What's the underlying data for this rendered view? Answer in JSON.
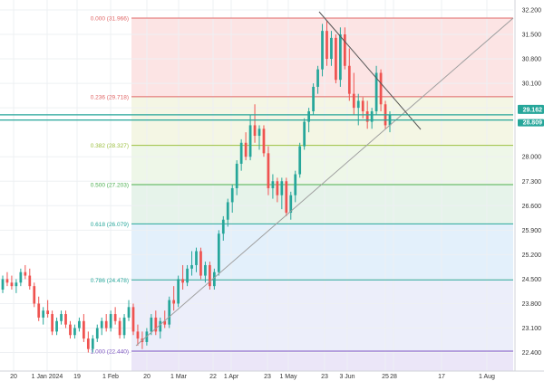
{
  "chart_data": {
    "type": "candlestick",
    "symbol_price": {
      "last": "29.162",
      "secondary": "28.809"
    },
    "y_axis": {
      "ticks": [
        "32.200",
        "31.500",
        "30.800",
        "30.100",
        "29.400",
        "28.000",
        "27.300",
        "26.600",
        "25.900",
        "25.200",
        "24.500",
        "23.800",
        "23.100",
        "22.400"
      ],
      "range": [
        22.1,
        32.3
      ]
    },
    "x_axis": {
      "ticks": [
        "20",
        "1 Jan 2024",
        "19",
        "1 Feb",
        "20",
        "1 Mar",
        "22",
        "1 Apr",
        "23",
        "1 May",
        "23",
        "3 Jun",
        "25",
        "28",
        "17",
        "1 Aug"
      ]
    },
    "fibonacci": {
      "levels": [
        {
          "label": "0.000 (31.966)",
          "price": 31.966,
          "color": "#e06666",
          "fill": "#fce4e4"
        },
        {
          "label": "0.236 (29.718)",
          "price": 29.718,
          "color": "#e06666",
          "fill": "#f4f6e4"
        },
        {
          "label": "0.382 (28.327)",
          "price": 28.327,
          "color": "#9bbf3f",
          "fill": "#eef7e8"
        },
        {
          "label": "0.500 (27.203)",
          "price": 27.203,
          "color": "#4caf50",
          "fill": "#e6f3ea"
        },
        {
          "label": "0.618 (26.079)",
          "price": 26.079,
          "color": "#26a69a",
          "fill": "#e3f0fb"
        },
        {
          "label": "0.786 (24.478)",
          "price": 24.478,
          "color": "#26a69a",
          "fill": "#eceefa"
        },
        {
          "label": "1.000 (22.440)",
          "price": 22.44,
          "color": "#7e57c2",
          "fill": "#ebe6f8"
        }
      ]
    },
    "horizontal_lines": [
      29.2,
      29.05
    ],
    "candles": [
      [
        24.2,
        24.6,
        24.1,
        24.5
      ],
      [
        24.5,
        24.7,
        24.3,
        24.4
      ],
      [
        24.4,
        24.6,
        24.2,
        24.3
      ],
      [
        24.3,
        24.5,
        24.1,
        24.4
      ],
      [
        24.4,
        24.8,
        24.3,
        24.7
      ],
      [
        24.7,
        24.9,
        24.5,
        24.6
      ],
      [
        24.6,
        24.8,
        24.2,
        24.3
      ],
      [
        24.3,
        24.4,
        23.7,
        23.8
      ],
      [
        23.8,
        24.0,
        23.3,
        23.4
      ],
      [
        23.4,
        23.7,
        23.2,
        23.6
      ],
      [
        23.6,
        23.9,
        23.4,
        23.5
      ],
      [
        23.5,
        23.6,
        22.9,
        23.0
      ],
      [
        23.0,
        23.4,
        22.9,
        23.3
      ],
      [
        23.3,
        23.6,
        23.2,
        23.5
      ],
      [
        23.5,
        23.6,
        23.1,
        23.2
      ],
      [
        23.2,
        23.3,
        22.8,
        22.9
      ],
      [
        22.9,
        23.2,
        22.8,
        23.1
      ],
      [
        23.1,
        23.4,
        23.0,
        23.3
      ],
      [
        23.3,
        23.5,
        22.7,
        22.8
      ],
      [
        22.8,
        23.0,
        22.4,
        22.5
      ],
      [
        22.5,
        22.9,
        22.4,
        22.8
      ],
      [
        22.8,
        23.2,
        22.7,
        23.1
      ],
      [
        23.1,
        23.4,
        22.9,
        23.3
      ],
      [
        23.3,
        23.5,
        23.0,
        23.1
      ],
      [
        23.1,
        23.6,
        23.0,
        23.5
      ],
      [
        23.5,
        23.7,
        23.2,
        23.3
      ],
      [
        23.3,
        23.4,
        22.8,
        22.9
      ],
      [
        22.9,
        23.5,
        22.8,
        23.4
      ],
      [
        23.4,
        23.9,
        23.3,
        23.7
      ],
      [
        23.7,
        23.8,
        22.9,
        23.0
      ],
      [
        23.0,
        23.2,
        22.6,
        22.8
      ],
      [
        22.8,
        23.0,
        22.5,
        22.7
      ],
      [
        22.7,
        23.1,
        22.6,
        23.0
      ],
      [
        23.0,
        23.5,
        22.9,
        23.4
      ],
      [
        23.4,
        23.6,
        22.9,
        23.0
      ],
      [
        23.0,
        23.4,
        22.8,
        23.3
      ],
      [
        23.3,
        23.6,
        23.1,
        23.2
      ],
      [
        23.2,
        24.0,
        23.1,
        23.9
      ],
      [
        23.9,
        24.3,
        23.6,
        23.8
      ],
      [
        23.8,
        24.6,
        23.7,
        24.5
      ],
      [
        24.5,
        24.9,
        24.2,
        24.4
      ],
      [
        24.4,
        24.9,
        24.3,
        24.8
      ],
      [
        24.8,
        25.3,
        24.6,
        24.9
      ],
      [
        24.9,
        25.4,
        24.7,
        25.3
      ],
      [
        25.3,
        25.4,
        24.5,
        24.6
      ],
      [
        24.6,
        25.0,
        24.4,
        24.9
      ],
      [
        24.9,
        25.0,
        24.2,
        24.3
      ],
      [
        24.3,
        24.8,
        24.2,
        24.7
      ],
      [
        24.7,
        25.9,
        24.6,
        25.8
      ],
      [
        25.8,
        26.3,
        25.6,
        26.2
      ],
      [
        26.2,
        26.8,
        26.0,
        26.7
      ],
      [
        26.7,
        27.2,
        26.4,
        27.1
      ],
      [
        27.1,
        27.9,
        26.9,
        27.8
      ],
      [
        27.8,
        28.5,
        27.6,
        28.4
      ],
      [
        28.4,
        28.7,
        27.9,
        28.0
      ],
      [
        28.0,
        29.2,
        27.9,
        28.9
      ],
      [
        28.9,
        29.5,
        28.4,
        28.6
      ],
      [
        28.6,
        28.9,
        28.2,
        28.8
      ],
      [
        28.8,
        28.9,
        28.0,
        28.1
      ],
      [
        28.1,
        28.3,
        26.9,
        27.1
      ],
      [
        27.1,
        27.5,
        26.8,
        27.3
      ],
      [
        27.3,
        27.4,
        26.7,
        26.9
      ],
      [
        26.9,
        27.4,
        26.5,
        27.3
      ],
      [
        27.3,
        27.4,
        26.3,
        26.4
      ],
      [
        26.4,
        27.0,
        26.2,
        26.9
      ],
      [
        26.9,
        27.6,
        26.7,
        27.5
      ],
      [
        27.5,
        28.4,
        27.4,
        28.3
      ],
      [
        28.3,
        29.1,
        28.2,
        29.0
      ],
      [
        29.0,
        29.4,
        28.7,
        29.3
      ],
      [
        29.3,
        30.1,
        29.2,
        30.0
      ],
      [
        30.0,
        30.6,
        29.8,
        30.5
      ],
      [
        30.5,
        31.8,
        30.3,
        31.6
      ],
      [
        31.6,
        31.9,
        30.6,
        30.8
      ],
      [
        30.8,
        31.6,
        30.6,
        31.4
      ],
      [
        31.4,
        31.5,
        30.1,
        30.2
      ],
      [
        30.2,
        31.7,
        30.0,
        31.5
      ],
      [
        31.5,
        31.7,
        30.5,
        30.6
      ],
      [
        30.6,
        31.1,
        29.6,
        29.8
      ],
      [
        29.8,
        30.4,
        29.2,
        29.4
      ],
      [
        29.4,
        29.8,
        28.9,
        29.6
      ],
      [
        29.6,
        29.7,
        29.1,
        29.3
      ],
      [
        29.3,
        29.6,
        28.8,
        29.0
      ],
      [
        29.0,
        29.4,
        28.8,
        29.3
      ],
      [
        29.3,
        30.6,
        29.2,
        30.4
      ],
      [
        30.4,
        30.5,
        29.3,
        29.5
      ],
      [
        29.5,
        29.6,
        28.8,
        28.9
      ],
      [
        28.9,
        29.3,
        28.7,
        29.2
      ]
    ]
  }
}
